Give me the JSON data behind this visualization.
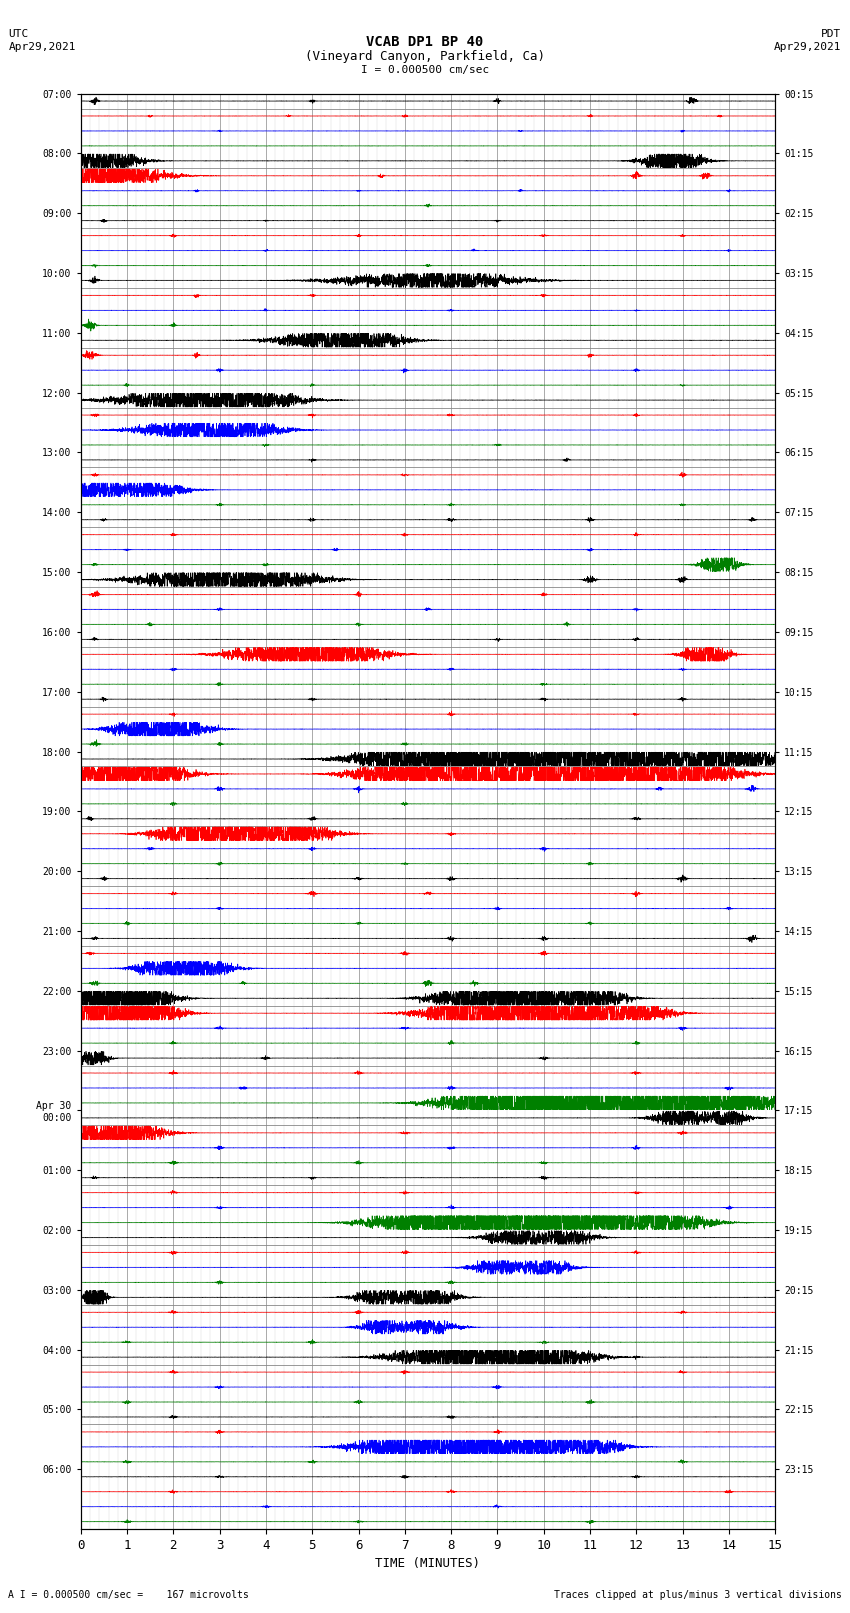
{
  "title_line1": "VCAB DP1 BP 40",
  "title_line2": "(Vineyard Canyon, Parkfield, Ca)",
  "title_line3": "I = 0.000500 cm/sec",
  "left_label": "UTC",
  "left_date": "Apr29,2021",
  "right_label": "PDT",
  "right_date": "Apr29,2021",
  "xlabel": "TIME (MINUTES)",
  "footer_left": "A I = 0.000500 cm/sec =    167 microvolts",
  "footer_right": "Traces clipped at plus/minus 3 vertical divisions",
  "xlim": [
    0,
    15
  ],
  "xticks": [
    0,
    1,
    2,
    3,
    4,
    5,
    6,
    7,
    8,
    9,
    10,
    11,
    12,
    13,
    14,
    15
  ],
  "background_color": "#ffffff",
  "grid_color": "#888888",
  "row_labels_left": [
    "07:00",
    "08:00",
    "09:00",
    "10:00",
    "11:00",
    "12:00",
    "13:00",
    "14:00",
    "15:00",
    "16:00",
    "17:00",
    "18:00",
    "19:00",
    "20:00",
    "21:00",
    "22:00",
    "23:00",
    "Apr 30\n00:00",
    "01:00",
    "02:00",
    "03:00",
    "04:00",
    "05:00",
    "06:00"
  ],
  "row_labels_right": [
    "00:15",
    "01:15",
    "02:15",
    "03:15",
    "04:15",
    "05:15",
    "06:15",
    "07:15",
    "08:15",
    "09:15",
    "10:15",
    "11:15",
    "12:15",
    "13:15",
    "14:15",
    "15:15",
    "16:15",
    "17:15",
    "18:15",
    "19:15",
    "20:15",
    "21:15",
    "22:15",
    "23:15"
  ],
  "n_rows": 24,
  "n_channels": 4,
  "channel_colors": [
    "black",
    "red",
    "blue",
    "green"
  ],
  "seed": 12345
}
